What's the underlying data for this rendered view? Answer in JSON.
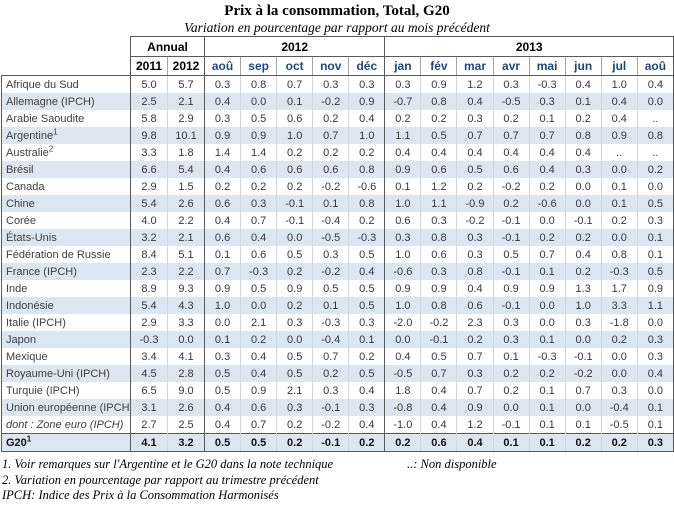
{
  "page": {
    "title": "Prix à la consommation, Total, G20",
    "subtitle": "Variation en pourcentage par rapport au mois précédent"
  },
  "table": {
    "group_headers": {
      "annual": "Annual",
      "y2012": "2012",
      "y2013": "2013"
    },
    "annual_cols": [
      "2011",
      "2012"
    ],
    "months_2012": [
      "aoû",
      "sep",
      "oct",
      "nov",
      "déc"
    ],
    "months_2013": [
      "jan",
      "fév",
      "mar",
      "avr",
      "mai",
      "jun",
      "jul",
      "aoû"
    ],
    "not_available_symbol": "..",
    "rows": [
      {
        "name": "Afrique du Sud",
        "sup": "",
        "style": "normal",
        "values": [
          "5.0",
          "5.7",
          "0.3",
          "0.8",
          "0.7",
          "0.3",
          "0.3",
          "0.3",
          "0.9",
          "1.2",
          "0.3",
          "-0.3",
          "0.4",
          "1.0",
          "0.4"
        ]
      },
      {
        "name": "Allemagne (IPCH)",
        "sup": "",
        "style": "normal",
        "values": [
          "2.5",
          "2.1",
          "0.4",
          "0.0",
          "0.1",
          "-0.2",
          "0.9",
          "-0.7",
          "0.8",
          "0.4",
          "-0.5",
          "0.3",
          "0.1",
          "0.4",
          "0.0"
        ]
      },
      {
        "name": "Arabie Saoudite",
        "sup": "",
        "style": "normal",
        "values": [
          "5.8",
          "2.9",
          "0.3",
          "0.5",
          "0.6",
          "0.2",
          "0.4",
          "0.2",
          "0.2",
          "0.3",
          "0.2",
          "0.1",
          "0.2",
          "0.4",
          ".."
        ]
      },
      {
        "name": "Argentine",
        "sup": "1",
        "style": "normal",
        "values": [
          "9.8",
          "10.1",
          "0.9",
          "0.9",
          "1.0",
          "0.7",
          "1.0",
          "1.1",
          "0.5",
          "0.7",
          "0.7",
          "0.7",
          "0.8",
          "0.9",
          "0.8"
        ]
      },
      {
        "name": "Australie",
        "sup": "2",
        "style": "normal",
        "values": [
          "3.3",
          "1.8",
          "1.4",
          "1.4",
          "0.2",
          "0.2",
          "0.2",
          "0.4",
          "0.4",
          "0.4",
          "0.4",
          "0.4",
          "0.4",
          "..",
          ".."
        ]
      },
      {
        "name": "Brésil",
        "sup": "",
        "style": "normal",
        "values": [
          "6.6",
          "5.4",
          "0.4",
          "0.6",
          "0.6",
          "0.6",
          "0.8",
          "0.9",
          "0.6",
          "0.5",
          "0.6",
          "0.4",
          "0.3",
          "0.0",
          "0.2"
        ]
      },
      {
        "name": "Canada",
        "sup": "",
        "style": "normal",
        "values": [
          "2.9",
          "1.5",
          "0.2",
          "0.2",
          "0.2",
          "-0.2",
          "-0.6",
          "0.1",
          "1.2",
          "0.2",
          "-0.2",
          "0.2",
          "0.0",
          "0.1",
          "0.0"
        ]
      },
      {
        "name": "Chine",
        "sup": "",
        "style": "normal",
        "values": [
          "5.4",
          "2.6",
          "0.6",
          "0.3",
          "-0.1",
          "0.1",
          "0.8",
          "1.0",
          "1.1",
          "-0.9",
          "0.2",
          "-0.6",
          "0.0",
          "0.1",
          "0.5"
        ]
      },
      {
        "name": "Corée",
        "sup": "",
        "style": "normal",
        "values": [
          "4.0",
          "2.2",
          "0.4",
          "0.7",
          "-0.1",
          "-0.4",
          "0.2",
          "0.6",
          "0.3",
          "-0.2",
          "-0.1",
          "0.0",
          "-0.1",
          "0.2",
          "0.3"
        ]
      },
      {
        "name": "États-Unis",
        "sup": "",
        "style": "normal",
        "values": [
          "3.2",
          "2.1",
          "0.6",
          "0.4",
          "0.0",
          "-0.5",
          "-0.3",
          "0.3",
          "0.8",
          "0.3",
          "-0.1",
          "0.2",
          "0.2",
          "0.0",
          "0.1"
        ]
      },
      {
        "name": "Fédération de Russie",
        "sup": "",
        "style": "normal",
        "values": [
          "8.4",
          "5.1",
          "0.1",
          "0.6",
          "0.5",
          "0.3",
          "0.5",
          "1.0",
          "0.6",
          "0.3",
          "0.5",
          "0.7",
          "0.4",
          "0.8",
          "0.1"
        ]
      },
      {
        "name": "France (IPCH)",
        "sup": "",
        "style": "normal",
        "values": [
          "2.3",
          "2.2",
          "0.7",
          "-0.3",
          "0.2",
          "-0.2",
          "0.4",
          "-0.6",
          "0.3",
          "0.8",
          "-0.1",
          "0.1",
          "0.2",
          "-0.3",
          "0.5"
        ]
      },
      {
        "name": "Inde",
        "sup": "",
        "style": "normal",
        "values": [
          "8.9",
          "9.3",
          "0.9",
          "0.5",
          "0.9",
          "0.5",
          "0.5",
          "0.9",
          "0.9",
          "0.4",
          "0.9",
          "0.9",
          "1.3",
          "1.7",
          "0.9"
        ]
      },
      {
        "name": "Indonésie",
        "sup": "",
        "style": "normal",
        "values": [
          "5.4",
          "4.3",
          "1.0",
          "0.0",
          "0.2",
          "0.1",
          "0.5",
          "1.0",
          "0.8",
          "0.6",
          "-0.1",
          "0.0",
          "1.0",
          "3.3",
          "1.1"
        ]
      },
      {
        "name": "Italie (IPCH)",
        "sup": "",
        "style": "normal",
        "values": [
          "2.9",
          "3.3",
          "0.0",
          "2.1",
          "0.3",
          "-0.3",
          "0.3",
          "-2.0",
          "-0.2",
          "2.3",
          "0.3",
          "0.0",
          "0.3",
          "-1.8",
          "0.0"
        ]
      },
      {
        "name": "Japon",
        "sup": "",
        "style": "normal",
        "values": [
          "-0.3",
          "0.0",
          "0.1",
          "0.2",
          "0.0",
          "-0.4",
          "0.1",
          "0.0",
          "-0.1",
          "0.2",
          "0.3",
          "0.1",
          "0.0",
          "0.2",
          "0.3"
        ]
      },
      {
        "name": "Mexique",
        "sup": "",
        "style": "normal",
        "values": [
          "3.4",
          "4.1",
          "0.3",
          "0.4",
          "0.5",
          "0.7",
          "0.2",
          "0.4",
          "0.5",
          "0.7",
          "0.1",
          "-0.3",
          "-0.1",
          "0.0",
          "0.3"
        ]
      },
      {
        "name": "Royaume-Uni (IPCH)",
        "sup": "",
        "style": "normal",
        "values": [
          "4.5",
          "2.8",
          "0.5",
          "0.4",
          "0.5",
          "0.2",
          "0.5",
          "-0.5",
          "0.7",
          "0.3",
          "0.2",
          "0.2",
          "-0.2",
          "0.0",
          "0.4"
        ]
      },
      {
        "name": "Turquie (IPCH)",
        "sup": "",
        "style": "normal",
        "values": [
          "6.5",
          "9.0",
          "0.5",
          "0.9",
          "2.1",
          "0.3",
          "0.4",
          "1.8",
          "0.4",
          "0.7",
          "0.2",
          "0.1",
          "0.7",
          "0.3",
          "0.0"
        ]
      },
      {
        "name": "Union européenne (IPCH)",
        "sup": "",
        "style": "normal",
        "values": [
          "3.1",
          "2.6",
          "0.4",
          "0.6",
          "0.3",
          "-0.1",
          "0.3",
          "-0.8",
          "0.4",
          "0.9",
          "0.0",
          "0.1",
          "0.0",
          "-0.4",
          "0.1"
        ]
      },
      {
        "name": "dont : Zone euro (IPCH)",
        "sup": "",
        "style": "italic",
        "values": [
          "2.7",
          "2.5",
          "0.4",
          "0.7",
          "0.2",
          "-0.2",
          "0.4",
          "-1.0",
          "0.4",
          "1.2",
          "-0.1",
          "0.1",
          "0.1",
          "-0.5",
          "0.1"
        ]
      },
      {
        "name": "G20",
        "sup": "1",
        "style": "total",
        "values": [
          "4.1",
          "3.2",
          "0.5",
          "0.5",
          "0.2",
          "-0.1",
          "0.2",
          "0.2",
          "0.6",
          "0.4",
          "0.1",
          "0.1",
          "0.2",
          "0.2",
          "0.3"
        ]
      }
    ]
  },
  "footnotes": {
    "note1": "1. Voir remarques sur l'Argentine et le G20 dans la note technique",
    "not_available": "..: Non disponible",
    "note2": "2. Variation en pourcentage par rapport au trimestre précédent",
    "note3": "IPCH: Indice des Prix à la Consommation Harmonisés"
  },
  "colors": {
    "stripe_blue": "#dce6f1",
    "month_header_text": "#1f497d",
    "border_dark": "#595959",
    "border_light": "#cdd6e3"
  }
}
